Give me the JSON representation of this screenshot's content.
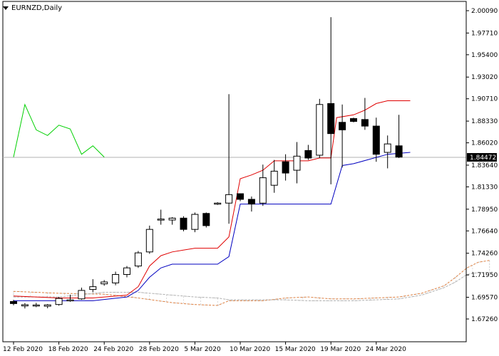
{
  "window": {
    "symbol_label": "EURNZD,Daily"
  },
  "price_axis": {
    "labels": [
      "2.00090",
      "1.97710",
      "1.95400",
      "1.93020",
      "1.90710",
      "1.88330",
      "1.86020",
      "1.83640",
      "1.81330",
      "1.78950",
      "1.76640",
      "1.74260",
      "1.71950",
      "1.69570",
      "1.67260"
    ],
    "current_price": "1.84472"
  },
  "time_axis": {
    "labels": [
      "12 Feb 2020",
      "18 Feb 2020",
      "24 Feb 2020",
      "28 Feb 2020",
      "5 Mar 2020",
      "10 Mar 2020",
      "15 Mar 2020",
      "19 Mar 2020",
      "24 Mar 2020"
    ]
  },
  "colors": {
    "bull_body": "#ffffff",
    "bear_body": "#000000",
    "tenkan": "#e00000",
    "kijun": "#0000c0",
    "chikou": "#00d000",
    "cloud": "#e08040",
    "cloud_edge": "#b0b0b0",
    "price_line": "#b0b0b0"
  },
  "chart_data": {
    "type": "candlestick",
    "title": "EURNZD,Daily",
    "ylim": [
      1.6726,
      2.0009
    ],
    "candles": [
      {
        "o": 1.6912,
        "h": 1.693,
        "l": 1.6872,
        "c": 1.689
      },
      {
        "o": 1.6865,
        "h": 1.6895,
        "l": 1.6838,
        "c": 1.6878
      },
      {
        "o": 1.6868,
        "h": 1.6898,
        "l": 1.6852,
        "c": 1.6875
      },
      {
        "o": 1.6862,
        "h": 1.6885,
        "l": 1.684,
        "c": 1.6876
      },
      {
        "o": 1.688,
        "h": 1.696,
        "l": 1.6868,
        "c": 1.6945
      },
      {
        "o": 1.692,
        "h": 1.6985,
        "l": 1.691,
        "c": 1.693
      },
      {
        "o": 1.694,
        "h": 1.706,
        "l": 1.693,
        "c": 1.703
      },
      {
        "o": 1.704,
        "h": 1.715,
        "l": 1.701,
        "c": 1.707
      },
      {
        "o": 1.71,
        "h": 1.714,
        "l": 1.708,
        "c": 1.712
      },
      {
        "o": 1.711,
        "h": 1.723,
        "l": 1.7085,
        "c": 1.72
      },
      {
        "o": 1.72,
        "h": 1.729,
        "l": 1.717,
        "c": 1.727
      },
      {
        "o": 1.729,
        "h": 1.745,
        "l": 1.727,
        "c": 1.743
      },
      {
        "o": 1.744,
        "h": 1.772,
        "l": 1.742,
        "c": 1.768
      },
      {
        "o": 1.778,
        "h": 1.789,
        "l": 1.773,
        "c": 1.779
      },
      {
        "o": 1.778,
        "h": 1.781,
        "l": 1.773,
        "c": 1.78
      },
      {
        "o": 1.78,
        "h": 1.782,
        "l": 1.766,
        "c": 1.768
      },
      {
        "o": 1.768,
        "h": 1.786,
        "l": 1.765,
        "c": 1.784
      },
      {
        "o": 1.785,
        "h": 1.786,
        "l": 1.77,
        "c": 1.772
      },
      {
        "o": 1.795,
        "h": 1.797,
        "l": 1.794,
        "c": 1.796
      },
      {
        "o": 1.796,
        "h": 1.912,
        "l": 1.774,
        "c": 1.805
      },
      {
        "o": 1.806,
        "h": 1.806,
        "l": 1.798,
        "c": 1.8
      },
      {
        "o": 1.8,
        "h": 1.803,
        "l": 1.787,
        "c": 1.795
      },
      {
        "o": 1.796,
        "h": 1.837,
        "l": 1.793,
        "c": 1.823
      },
      {
        "o": 1.815,
        "h": 1.842,
        "l": 1.807,
        "c": 1.83
      },
      {
        "o": 1.84,
        "h": 1.848,
        "l": 1.82,
        "c": 1.828
      },
      {
        "o": 1.831,
        "h": 1.861,
        "l": 1.817,
        "c": 1.846
      },
      {
        "o": 1.852,
        "h": 1.858,
        "l": 1.842,
        "c": 1.844
      },
      {
        "o": 1.847,
        "h": 1.907,
        "l": 1.844,
        "c": 1.901
      },
      {
        "o": 1.902,
        "h": 1.994,
        "l": 1.816,
        "c": 1.87
      },
      {
        "o": 1.882,
        "h": 1.901,
        "l": 1.834,
        "c": 1.874
      },
      {
        "o": 1.886,
        "h": 1.887,
        "l": 1.882,
        "c": 1.883
      },
      {
        "o": 1.885,
        "h": 1.908,
        "l": 1.874,
        "c": 1.878
      },
      {
        "o": 1.878,
        "h": 1.887,
        "l": 1.84,
        "c": 1.848
      },
      {
        "o": 1.85,
        "h": 1.868,
        "l": 1.833,
        "c": 1.859
      },
      {
        "o": 1.857,
        "h": 1.89,
        "l": 1.844,
        "c": 1.845
      }
    ],
    "tenkan_sen": [
      [
        0,
        1.697
      ],
      [
        4,
        1.695
      ],
      [
        7,
        1.695
      ],
      [
        10,
        1.698
      ],
      [
        11,
        1.707
      ],
      [
        12,
        1.729
      ],
      [
        13,
        1.74
      ],
      [
        14,
        1.744
      ],
      [
        16,
        1.748
      ],
      [
        18,
        1.748
      ],
      [
        19,
        1.76
      ],
      [
        20,
        1.822
      ],
      [
        21,
        1.826
      ],
      [
        22,
        1.831
      ],
      [
        23,
        1.841
      ],
      [
        26,
        1.841
      ],
      [
        27,
        1.844
      ],
      [
        28,
        1.844
      ],
      [
        28.5,
        1.887
      ],
      [
        30,
        1.89
      ],
      [
        31,
        1.895
      ],
      [
        32,
        1.902
      ],
      [
        33,
        1.905
      ],
      [
        35,
        1.905
      ]
    ],
    "kijun_sen": [
      [
        0,
        1.692
      ],
      [
        3,
        1.692
      ],
      [
        4,
        1.692
      ],
      [
        7,
        1.692
      ],
      [
        10,
        1.696
      ],
      [
        11,
        1.703
      ],
      [
        12,
        1.717
      ],
      [
        13,
        1.727
      ],
      [
        14,
        1.731
      ],
      [
        16,
        1.731
      ],
      [
        18,
        1.731
      ],
      [
        19,
        1.739
      ],
      [
        20,
        1.795
      ],
      [
        22,
        1.795
      ],
      [
        25,
        1.795
      ],
      [
        28,
        1.795
      ],
      [
        29,
        1.836
      ],
      [
        30,
        1.838
      ],
      [
        33,
        1.848
      ],
      [
        35,
        1.85
      ]
    ],
    "chikou_span": [
      [
        0,
        1.845
      ],
      [
        1,
        1.901
      ],
      [
        2,
        1.874
      ],
      [
        3,
        1.868
      ],
      [
        4,
        1.879
      ],
      [
        5,
        1.875
      ],
      [
        6,
        1.848
      ],
      [
        7,
        1.857
      ],
      [
        8,
        1.845
      ]
    ],
    "senkou_a": [
      [
        0,
        1.702
      ],
      [
        4,
        1.7
      ],
      [
        8,
        1.699
      ],
      [
        11,
        1.695
      ],
      [
        14,
        1.69
      ],
      [
        16,
        1.688
      ],
      [
        18,
        1.687
      ],
      [
        19,
        1.692
      ],
      [
        22,
        1.692
      ],
      [
        24,
        1.695
      ],
      [
        26,
        1.696
      ],
      [
        28,
        1.694
      ],
      [
        30,
        1.694
      ],
      [
        34,
        1.696
      ],
      [
        36,
        1.7
      ],
      [
        38,
        1.708
      ],
      [
        39,
        1.717
      ],
      [
        40,
        1.727
      ],
      [
        41,
        1.733
      ],
      [
        42,
        1.735
      ]
    ],
    "senkou_b": [
      [
        0,
        1.696
      ],
      [
        4,
        1.696
      ],
      [
        8,
        1.701
      ],
      [
        11,
        1.701
      ],
      [
        14,
        1.698
      ],
      [
        16,
        1.696
      ],
      [
        18,
        1.695
      ],
      [
        19,
        1.693
      ],
      [
        22,
        1.693
      ],
      [
        24,
        1.693
      ],
      [
        26,
        1.692
      ],
      [
        28,
        1.692
      ],
      [
        30,
        1.692
      ],
      [
        34,
        1.694
      ],
      [
        36,
        1.698
      ],
      [
        38,
        1.706
      ],
      [
        39,
        1.712
      ],
      [
        40,
        1.72
      ],
      [
        41,
        1.722
      ],
      [
        42,
        1.722
      ]
    ]
  }
}
